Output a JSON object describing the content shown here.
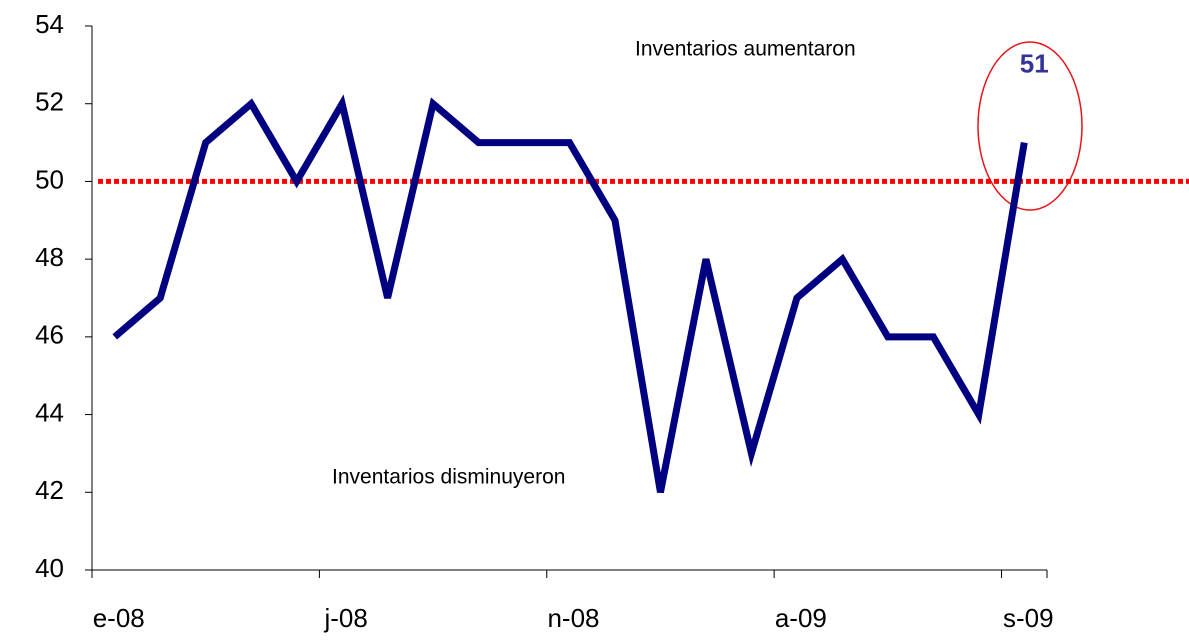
{
  "chart_data": {
    "type": "line",
    "categories": [
      "e-08",
      null,
      null,
      null,
      null,
      "j-08",
      null,
      null,
      null,
      null,
      "n-08",
      null,
      null,
      null,
      null,
      "a-09",
      null,
      null,
      null,
      null,
      "s-09"
    ],
    "series": [
      {
        "color": "#000080",
        "values": [
          46,
          47,
          51,
          52,
          50,
          52,
          47,
          52,
          51,
          51,
          51,
          49,
          42,
          48,
          43,
          47,
          48,
          46,
          46,
          44,
          51
        ]
      }
    ],
    "label_last": true,
    "label_color": "#333399",
    "reference_line": {
      "value": 50,
      "color": "#ff0000"
    },
    "annotations": [
      "Inventarios aumentaron",
      "Inventarios disminuyeron"
    ],
    "ylim": [
      40,
      54
    ],
    "yticks": [
      40,
      42,
      44,
      46,
      48,
      50,
      52,
      54
    ],
    "grid": false
  }
}
